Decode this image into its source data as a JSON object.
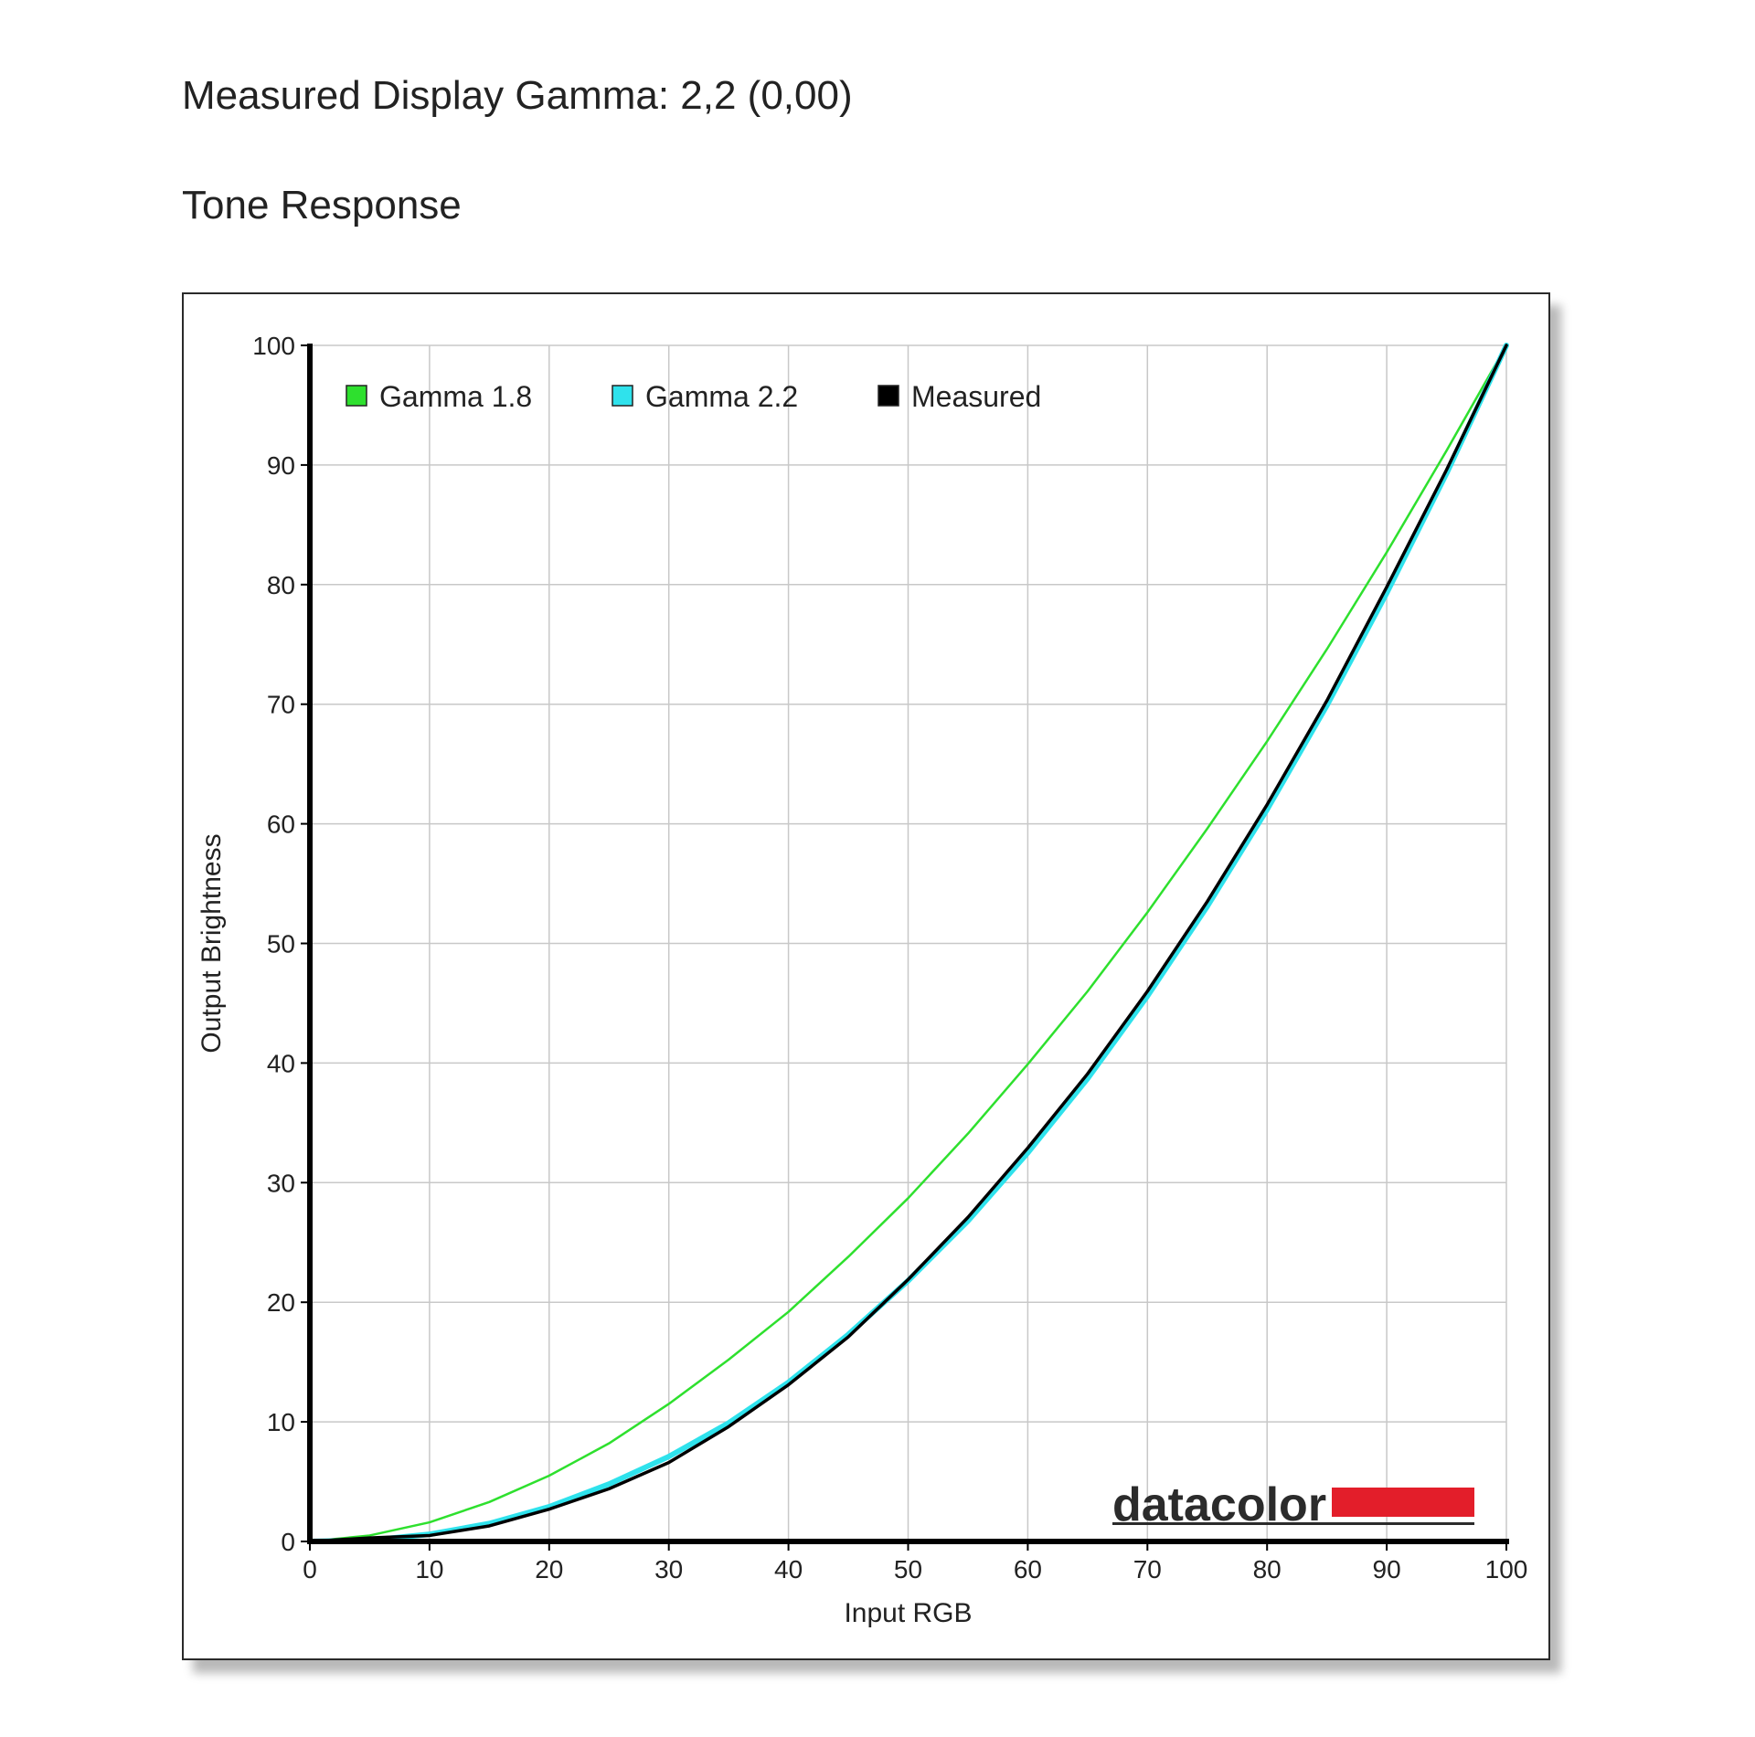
{
  "report": {
    "title": "Measured Display Gamma: 2,2 (0,00)",
    "section": "Tone Response"
  },
  "logo": {
    "text": "datacolor",
    "bar_color": "#e31e2a"
  },
  "colors": {
    "grid": "#c8c8c8",
    "axis": "#000000",
    "gamma18": "#2ee02e",
    "gamma22": "#2fe2ec",
    "measured": "#000000"
  },
  "chart_data": {
    "type": "line",
    "title": "",
    "xlabel": "Input RGB",
    "ylabel": "Output Brightness",
    "xlim": [
      0,
      100
    ],
    "ylim": [
      0,
      100
    ],
    "xticks": [
      0,
      10,
      20,
      30,
      40,
      50,
      60,
      70,
      80,
      90,
      100
    ],
    "yticks": [
      0,
      10,
      20,
      30,
      40,
      50,
      60,
      70,
      80,
      90,
      100
    ],
    "grid": true,
    "legend_position": "top-left",
    "series": [
      {
        "name": "Gamma 1.8",
        "color": "#2ee02e",
        "x": [
          0,
          5,
          10,
          15,
          20,
          25,
          30,
          35,
          40,
          45,
          50,
          55,
          60,
          65,
          70,
          75,
          80,
          85,
          90,
          95,
          100
        ],
        "y": [
          0,
          0.5,
          1.6,
          3.3,
          5.5,
          8.2,
          11.5,
          15.2,
          19.2,
          23.8,
          28.7,
          34.1,
          39.9,
          46.0,
          52.6,
          59.6,
          66.9,
          74.6,
          82.7,
          91.2,
          100
        ]
      },
      {
        "name": "Gamma 2.2",
        "color": "#2fe2ec",
        "x": [
          0,
          5,
          10,
          15,
          20,
          25,
          30,
          35,
          40,
          45,
          50,
          55,
          60,
          65,
          70,
          75,
          80,
          85,
          90,
          95,
          100
        ],
        "y": [
          0,
          0.1,
          0.6,
          1.5,
          2.9,
          4.8,
          7.1,
          9.9,
          13.3,
          17.3,
          21.8,
          26.8,
          32.5,
          38.7,
          45.6,
          53.1,
          61.2,
          69.9,
          79.3,
          89.3,
          100
        ]
      },
      {
        "name": "Measured",
        "color": "#000000",
        "x": [
          0,
          5,
          10,
          15,
          20,
          25,
          30,
          35,
          40,
          45,
          50,
          55,
          60,
          65,
          70,
          75,
          80,
          85,
          90,
          95,
          100
        ],
        "y": [
          0,
          0.3,
          0.5,
          1.3,
          2.7,
          4.4,
          6.6,
          9.6,
          13.1,
          17.1,
          21.9,
          27.1,
          32.9,
          39.1,
          46.0,
          53.5,
          61.6,
          70.3,
          79.8,
          89.6,
          100
        ]
      }
    ]
  }
}
